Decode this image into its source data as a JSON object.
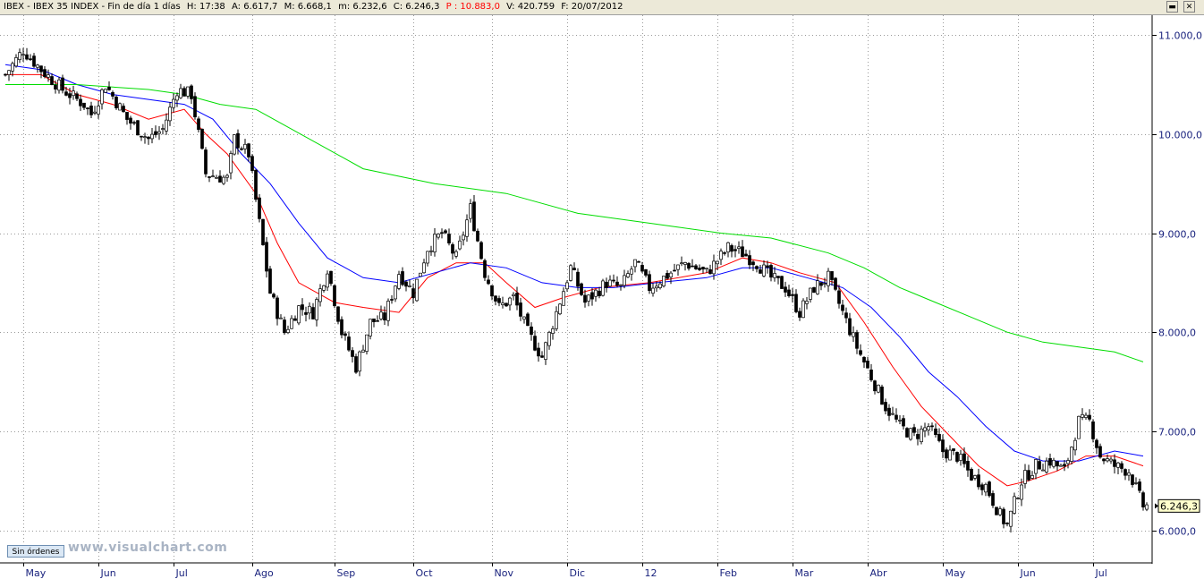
{
  "header": {
    "title": "IBEX - IBEX 35 INDEX - Fin de día 1 días",
    "hour": "H: 17:38",
    "open": "A: 6.617,7",
    "high": "M: 6.668,1",
    "low": "m: 6.232,6",
    "close": "C: 6.246,3",
    "p": "P : 10.883,0",
    "volume": "V: 420.759",
    "date": "F: 20/07/2012",
    "p_color": "#ff0000"
  },
  "window_buttons": {
    "minimize": "▬",
    "close": "✕"
  },
  "footer": {
    "orders_button": "Sin órdenes",
    "watermark": "www.visualchart.com"
  },
  "chart_data": {
    "type": "line",
    "subtype": "candlestick",
    "yaxis": {
      "ticks": [
        6000,
        7000,
        8000,
        9000,
        10000,
        11000
      ],
      "tick_labels": [
        "6.000,0",
        "7.000,0",
        "8.000,0",
        "9.000,0",
        "10.000,0",
        "11.000,0"
      ],
      "ylim": [
        5680,
        11200
      ],
      "position": "right",
      "grid": true
    },
    "xaxis": {
      "tick_labels": [
        "May",
        "Jun",
        "Jul",
        "Ago",
        "Sep",
        "Oct",
        "Nov",
        "Dic",
        "12",
        "Feb",
        "Mar",
        "Abr",
        "May",
        "Jun",
        "Jul"
      ],
      "grid": true
    },
    "last_value_label": "6.246,3",
    "price_path": [
      [
        0,
        10600
      ],
      [
        5,
        10850
      ],
      [
        10,
        10650
      ],
      [
        16,
        10450
      ],
      [
        22,
        10300
      ],
      [
        24,
        10200
      ],
      [
        28,
        10500
      ],
      [
        34,
        10150
      ],
      [
        40,
        9950
      ],
      [
        44,
        10050
      ],
      [
        48,
        10450
      ],
      [
        52,
        10400
      ],
      [
        56,
        9600
      ],
      [
        62,
        9550
      ],
      [
        64,
        9950
      ],
      [
        68,
        9800
      ],
      [
        74,
        8400
      ],
      [
        78,
        8000
      ],
      [
        82,
        8250
      ],
      [
        86,
        8200
      ],
      [
        90,
        8650
      ],
      [
        94,
        8000
      ],
      [
        98,
        7650
      ],
      [
        102,
        8100
      ],
      [
        106,
        8150
      ],
      [
        110,
        8600
      ],
      [
        114,
        8400
      ],
      [
        118,
        8850
      ],
      [
        122,
        9000
      ],
      [
        126,
        8750
      ],
      [
        130,
        9250
      ],
      [
        134,
        8600
      ],
      [
        138,
        8250
      ],
      [
        142,
        8350
      ],
      [
        146,
        8000
      ],
      [
        150,
        7750
      ],
      [
        154,
        8200
      ],
      [
        158,
        8650
      ],
      [
        162,
        8300
      ],
      [
        168,
        8500
      ],
      [
        172,
        8450
      ],
      [
        176,
        8700
      ],
      [
        180,
        8450
      ],
      [
        186,
        8600
      ],
      [
        190,
        8700
      ],
      [
        196,
        8600
      ],
      [
        202,
        8850
      ],
      [
        206,
        8800
      ],
      [
        210,
        8700
      ],
      [
        214,
        8550
      ],
      [
        218,
        8450
      ],
      [
        222,
        8200
      ],
      [
        226,
        8450
      ],
      [
        230,
        8550
      ],
      [
        234,
        8200
      ],
      [
        238,
        7850
      ],
      [
        242,
        7550
      ],
      [
        246,
        7250
      ],
      [
        250,
        7050
      ],
      [
        254,
        6950
      ],
      [
        258,
        7050
      ],
      [
        262,
        6800
      ],
      [
        266,
        6750
      ],
      [
        270,
        6550
      ],
      [
        274,
        6450
      ],
      [
        278,
        6150
      ],
      [
        280,
        6050
      ],
      [
        284,
        6500
      ],
      [
        288,
        6650
      ],
      [
        292,
        6700
      ],
      [
        296,
        6600
      ],
      [
        300,
        7100
      ],
      [
        303,
        7100
      ],
      [
        306,
        6750
      ],
      [
        310,
        6650
      ],
      [
        314,
        6600
      ],
      [
        318,
        6246
      ]
    ],
    "series": [
      {
        "name": "",
        "color": "#ff0000",
        "points": [
          [
            0,
            10600
          ],
          [
            10,
            10600
          ],
          [
            20,
            10400
          ],
          [
            30,
            10300
          ],
          [
            40,
            10150
          ],
          [
            50,
            10250
          ],
          [
            56,
            10000
          ],
          [
            62,
            9800
          ],
          [
            70,
            9400
          ],
          [
            76,
            8900
          ],
          [
            82,
            8500
          ],
          [
            92,
            8300
          ],
          [
            100,
            8250
          ],
          [
            110,
            8200
          ],
          [
            118,
            8550
          ],
          [
            126,
            8700
          ],
          [
            134,
            8700
          ],
          [
            140,
            8500
          ],
          [
            148,
            8250
          ],
          [
            156,
            8350
          ],
          [
            166,
            8450
          ],
          [
            180,
            8500
          ],
          [
            196,
            8600
          ],
          [
            206,
            8750
          ],
          [
            214,
            8700
          ],
          [
            222,
            8600
          ],
          [
            232,
            8500
          ],
          [
            240,
            8100
          ],
          [
            248,
            7650
          ],
          [
            256,
            7250
          ],
          [
            264,
            6950
          ],
          [
            272,
            6650
          ],
          [
            280,
            6450
          ],
          [
            286,
            6500
          ],
          [
            294,
            6600
          ],
          [
            302,
            6750
          ],
          [
            310,
            6750
          ],
          [
            318,
            6650
          ]
        ]
      },
      {
        "name": "",
        "color": "#0000ff",
        "points": [
          [
            0,
            10700
          ],
          [
            10,
            10650
          ],
          [
            20,
            10500
          ],
          [
            30,
            10400
          ],
          [
            40,
            10350
          ],
          [
            50,
            10300
          ],
          [
            58,
            10150
          ],
          [
            66,
            9800
          ],
          [
            74,
            9500
          ],
          [
            82,
            9100
          ],
          [
            90,
            8750
          ],
          [
            100,
            8550
          ],
          [
            110,
            8500
          ],
          [
            120,
            8600
          ],
          [
            130,
            8700
          ],
          [
            140,
            8650
          ],
          [
            150,
            8500
          ],
          [
            160,
            8450
          ],
          [
            170,
            8450
          ],
          [
            182,
            8500
          ],
          [
            196,
            8550
          ],
          [
            206,
            8650
          ],
          [
            214,
            8650
          ],
          [
            224,
            8550
          ],
          [
            234,
            8450
          ],
          [
            242,
            8250
          ],
          [
            250,
            7950
          ],
          [
            258,
            7600
          ],
          [
            266,
            7350
          ],
          [
            274,
            7050
          ],
          [
            282,
            6800
          ],
          [
            290,
            6700
          ],
          [
            300,
            6700
          ],
          [
            310,
            6800
          ],
          [
            318,
            6750
          ]
        ]
      },
      {
        "name": "",
        "color": "#00dd00",
        "points": [
          [
            0,
            10500
          ],
          [
            20,
            10500
          ],
          [
            40,
            10450
          ],
          [
            50,
            10400
          ],
          [
            60,
            10300
          ],
          [
            70,
            10250
          ],
          [
            80,
            10050
          ],
          [
            90,
            9850
          ],
          [
            100,
            9650
          ],
          [
            120,
            9500
          ],
          [
            140,
            9400
          ],
          [
            160,
            9200
          ],
          [
            180,
            9100
          ],
          [
            200,
            9000
          ],
          [
            214,
            8950
          ],
          [
            230,
            8800
          ],
          [
            240,
            8650
          ],
          [
            250,
            8450
          ],
          [
            260,
            8300
          ],
          [
            270,
            8150
          ],
          [
            280,
            8000
          ],
          [
            290,
            7900
          ],
          [
            300,
            7850
          ],
          [
            310,
            7800
          ],
          [
            318,
            7700
          ]
        ]
      }
    ]
  }
}
